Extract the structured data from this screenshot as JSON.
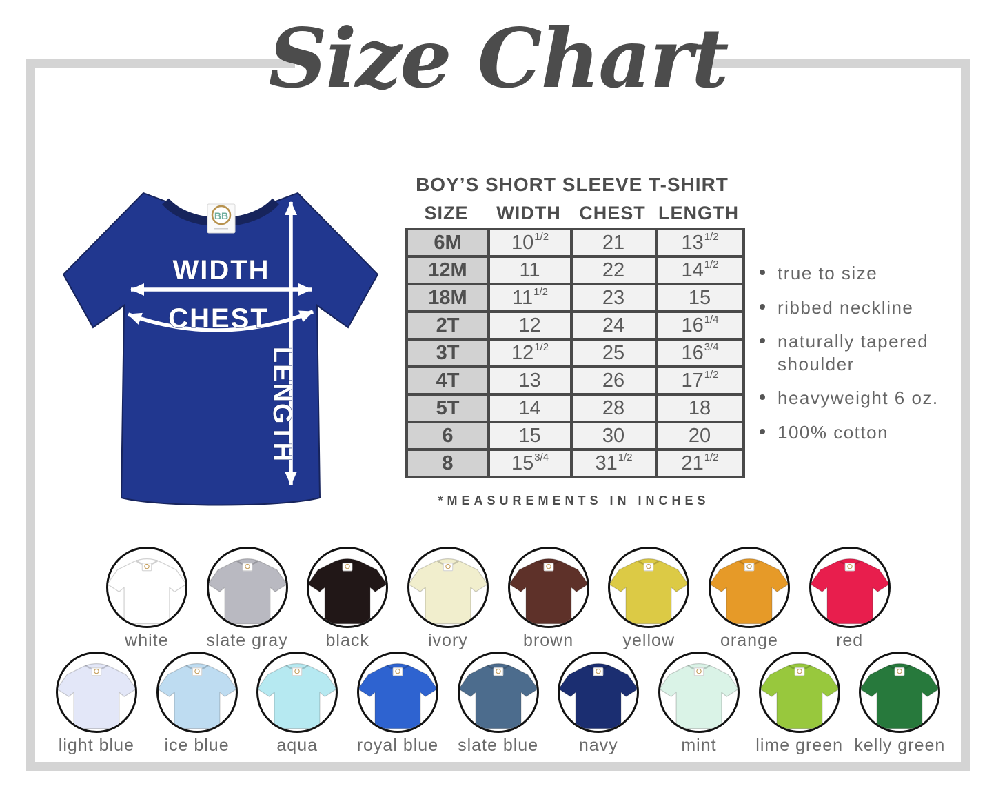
{
  "title": "Size Chart",
  "illustration": {
    "width_label": "WIDTH",
    "chest_label": "CHEST",
    "length_label": "LENGTH",
    "shirt_color": "#21378f",
    "tag_logo": "BB"
  },
  "table": {
    "heading": "BOY’S SHORT SLEEVE T-SHIRT",
    "columns": [
      "SIZE",
      "WIDTH",
      "CHEST",
      "LENGTH"
    ],
    "rows": [
      {
        "size": "6M",
        "width": {
          "base": "10",
          "frac": "1/2"
        },
        "chest": {
          "base": "21",
          "frac": ""
        },
        "length": {
          "base": "13",
          "frac": "1/2"
        }
      },
      {
        "size": "12M",
        "width": {
          "base": "11",
          "frac": ""
        },
        "chest": {
          "base": "22",
          "frac": ""
        },
        "length": {
          "base": "14",
          "frac": "1/2"
        }
      },
      {
        "size": "18M",
        "width": {
          "base": "11",
          "frac": "1/2"
        },
        "chest": {
          "base": "23",
          "frac": ""
        },
        "length": {
          "base": "15",
          "frac": ""
        }
      },
      {
        "size": "2T",
        "width": {
          "base": "12",
          "frac": ""
        },
        "chest": {
          "base": "24",
          "frac": ""
        },
        "length": {
          "base": "16",
          "frac": "1/4"
        }
      },
      {
        "size": "3T",
        "width": {
          "base": "12",
          "frac": "1/2"
        },
        "chest": {
          "base": "25",
          "frac": ""
        },
        "length": {
          "base": "16",
          "frac": "3/4"
        }
      },
      {
        "size": "4T",
        "width": {
          "base": "13",
          "frac": ""
        },
        "chest": {
          "base": "26",
          "frac": ""
        },
        "length": {
          "base": "17",
          "frac": "1/2"
        }
      },
      {
        "size": "5T",
        "width": {
          "base": "14",
          "frac": ""
        },
        "chest": {
          "base": "28",
          "frac": ""
        },
        "length": {
          "base": "18",
          "frac": ""
        }
      },
      {
        "size": "6",
        "width": {
          "base": "15",
          "frac": ""
        },
        "chest": {
          "base": "30",
          "frac": ""
        },
        "length": {
          "base": "20",
          "frac": ""
        }
      },
      {
        "size": "8",
        "width": {
          "base": "15",
          "frac": "3/4"
        },
        "chest": {
          "base": "31",
          "frac": "1/2"
        },
        "length": {
          "base": "21",
          "frac": "1/2"
        }
      }
    ],
    "footnote": "*MEASUREMENTS IN INCHES"
  },
  "features": [
    "true to size",
    "ribbed neckline",
    "naturally tapered shoulder",
    "heavyweight 6 oz.",
    "100% cotton"
  ],
  "colors": {
    "row1": [
      {
        "name": "white",
        "hex": "#ffffff"
      },
      {
        "name": "slate gray",
        "hex": "#b9b9c1"
      },
      {
        "name": "black",
        "hex": "#211717"
      },
      {
        "name": "ivory",
        "hex": "#f1eecd"
      },
      {
        "name": "brown",
        "hex": "#5e3129"
      },
      {
        "name": "yellow",
        "hex": "#dcca45"
      },
      {
        "name": "orange",
        "hex": "#e69a28"
      },
      {
        "name": "red",
        "hex": "#e81e4d"
      }
    ],
    "row2": [
      {
        "name": "light blue",
        "hex": "#e3e7f8"
      },
      {
        "name": "ice blue",
        "hex": "#bedcf1"
      },
      {
        "name": "aqua",
        "hex": "#b6e9f1"
      },
      {
        "name": "royal blue",
        "hex": "#2e63d0"
      },
      {
        "name": "slate blue",
        "hex": "#4c6c8d"
      },
      {
        "name": "navy",
        "hex": "#1b2e71"
      },
      {
        "name": "mint",
        "hex": "#daf3e7"
      },
      {
        "name": "lime green",
        "hex": "#98c83d"
      },
      {
        "name": "kelly green",
        "hex": "#27793c"
      }
    ]
  }
}
